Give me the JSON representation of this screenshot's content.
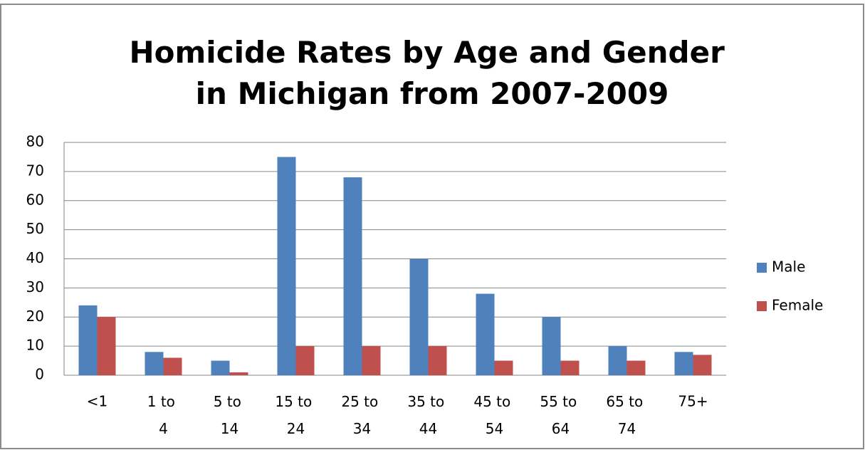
{
  "chart_data": {
    "type": "bar",
    "title": "Homicide Rates by Age and Gender in Michigan from 2007-2009",
    "categories": [
      "<1",
      "1 to 4",
      "5 to 14",
      "15 to 24",
      "25 to 34",
      "35 to 44",
      "45 to 54",
      "55 to 64",
      "65 to 74",
      "75+"
    ],
    "series": [
      {
        "name": "Male",
        "color": "#4f81bd",
        "values": [
          24,
          8,
          5,
          75,
          68,
          40,
          28,
          20,
          10,
          8
        ]
      },
      {
        "name": "Female",
        "color": "#c0504d",
        "values": [
          20,
          6,
          1,
          10,
          10,
          10,
          5,
          5,
          5,
          7
        ]
      }
    ],
    "ylim": [
      0,
      80
    ],
    "yticks": [
      0,
      10,
      20,
      30,
      40,
      50,
      60,
      70,
      80
    ],
    "grid": true,
    "legend": "right"
  }
}
